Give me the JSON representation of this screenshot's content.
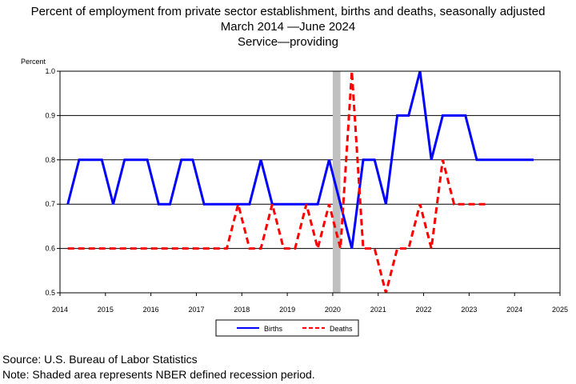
{
  "chart_data": {
    "type": "line",
    "title": "Percent of employment from private sector establishment, births and deaths, seasonally adjusted",
    "subtitle_1": "March 2014 —June 2024",
    "subtitle_2": "Service—providing",
    "ylabel": "Percent",
    "ylim": [
      0.5,
      1.0
    ],
    "yticks": [
      "0.5",
      "0.6",
      "0.7",
      "0.8",
      "0.9",
      "1.0"
    ],
    "xlim": [
      2014,
      2025
    ],
    "xticks": [
      "2014",
      "2015",
      "2016",
      "2017",
      "2018",
      "2019",
      "2020",
      "2021",
      "2022",
      "2023",
      "2024",
      "2025"
    ],
    "recession": {
      "start": 2020.0,
      "end": 2020.17
    },
    "grid": "horizontal",
    "legend_position": "bottom",
    "colors": {
      "births": "#0000ff",
      "deaths": "#ff0000",
      "recession": "#c0c0c0"
    },
    "series": [
      {
        "name": "Births",
        "style": "solid",
        "x": [
          2014.17,
          2014.42,
          2014.67,
          2014.92,
          2015.17,
          2015.42,
          2015.67,
          2015.92,
          2016.17,
          2016.42,
          2016.67,
          2016.92,
          2017.17,
          2017.42,
          2017.67,
          2017.92,
          2018.17,
          2018.42,
          2018.67,
          2018.92,
          2019.17,
          2019.42,
          2019.67,
          2019.92,
          2020.17,
          2020.42,
          2020.67,
          2020.92,
          2021.17,
          2021.42,
          2021.67,
          2021.92,
          2022.17,
          2022.42,
          2022.67,
          2022.92,
          2023.17,
          2023.42,
          2023.67,
          2023.92,
          2024.17,
          2024.42
        ],
        "y": [
          0.7,
          0.8,
          0.8,
          0.8,
          0.7,
          0.8,
          0.8,
          0.8,
          0.7,
          0.7,
          0.8,
          0.8,
          0.7,
          0.7,
          0.7,
          0.7,
          0.7,
          0.8,
          0.7,
          0.7,
          0.7,
          0.7,
          0.7,
          0.8,
          0.7,
          0.6,
          0.8,
          0.8,
          0.7,
          0.9,
          0.9,
          1.0,
          0.8,
          0.9,
          0.9,
          0.9,
          0.8,
          0.8,
          0.8,
          0.8,
          0.8,
          0.8
        ]
      },
      {
        "name": "Deaths",
        "style": "dashed",
        "x": [
          2014.17,
          2014.42,
          2014.67,
          2014.92,
          2015.17,
          2015.42,
          2015.67,
          2015.92,
          2016.17,
          2016.42,
          2016.67,
          2016.92,
          2017.17,
          2017.42,
          2017.67,
          2017.92,
          2018.17,
          2018.42,
          2018.67,
          2018.92,
          2019.17,
          2019.42,
          2019.67,
          2019.92,
          2020.17,
          2020.42,
          2020.67,
          2020.92,
          2021.17,
          2021.42,
          2021.67,
          2021.92,
          2022.17,
          2022.42,
          2022.67,
          2022.92,
          2023.17,
          2023.42
        ],
        "y": [
          0.6,
          0.6,
          0.6,
          0.6,
          0.6,
          0.6,
          0.6,
          0.6,
          0.6,
          0.6,
          0.6,
          0.6,
          0.6,
          0.6,
          0.6,
          0.7,
          0.6,
          0.6,
          0.7,
          0.6,
          0.6,
          0.7,
          0.6,
          0.7,
          0.6,
          1.0,
          0.6,
          0.6,
          0.5,
          0.6,
          0.6,
          0.7,
          0.6,
          0.8,
          0.7,
          0.7,
          0.7,
          0.7
        ]
      }
    ]
  },
  "footer": {
    "source": "Source: U.S. Bureau of Labor Statistics",
    "note": "Note: Shaded area represents NBER defined recession period."
  }
}
